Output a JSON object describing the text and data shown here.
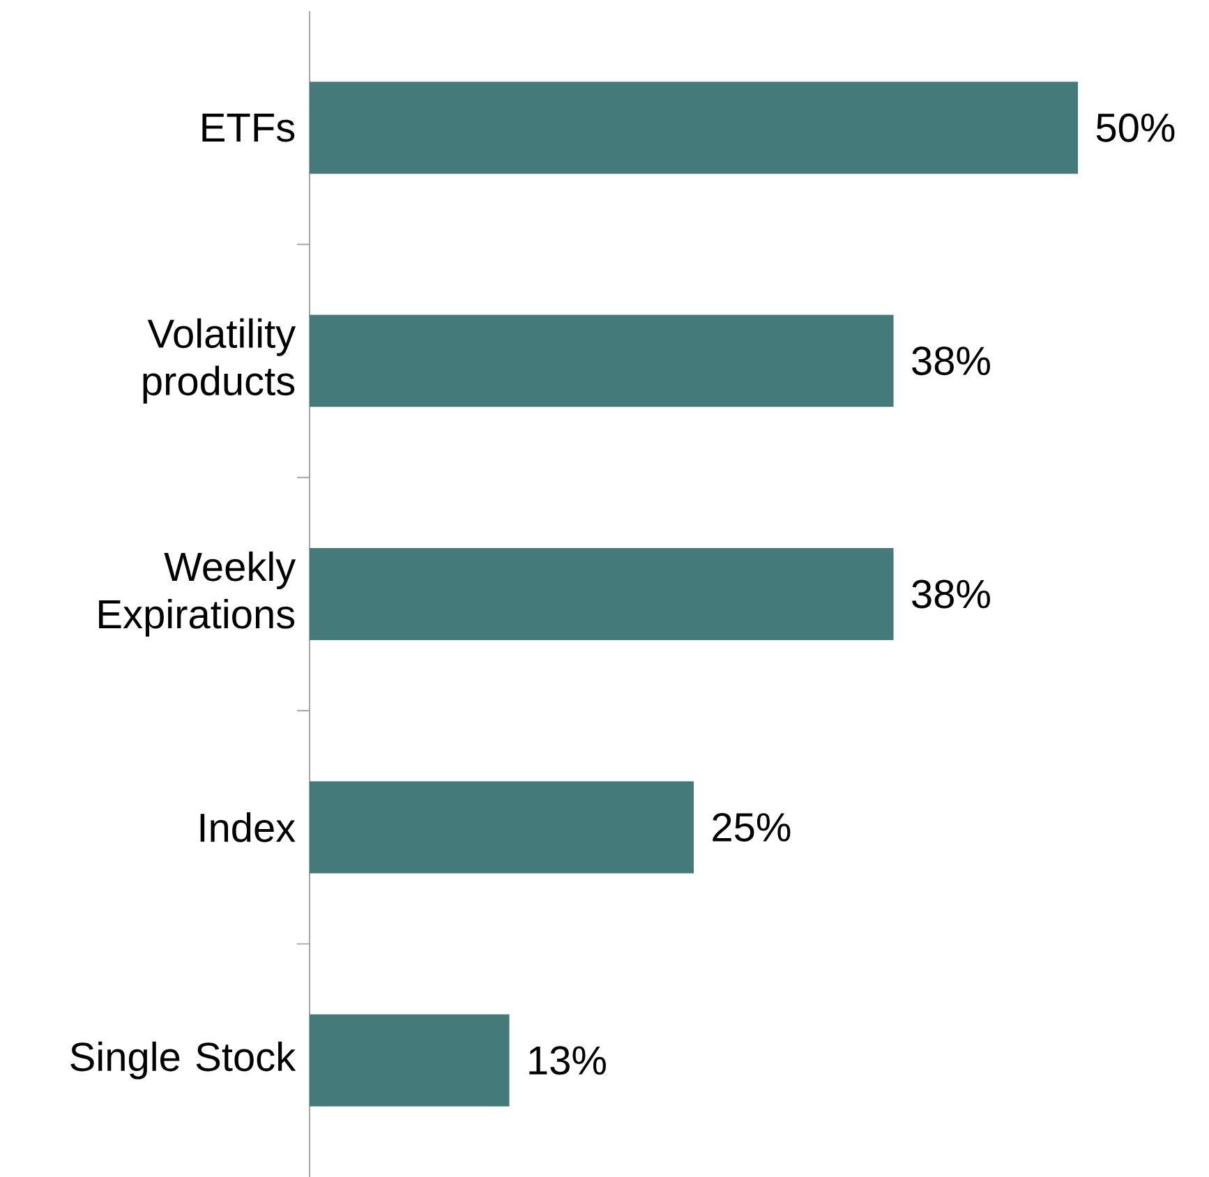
{
  "chart_data": {
    "type": "bar",
    "orientation": "horizontal",
    "categories": [
      "ETFs",
      "Volatility products",
      "Weekly Expirations",
      "Index",
      "Single Stock"
    ],
    "values": [
      50,
      38,
      38,
      25,
      13
    ],
    "value_labels": [
      "50%",
      "38%",
      "38%",
      "25%",
      "13%"
    ],
    "color": "#457a7a"
  }
}
